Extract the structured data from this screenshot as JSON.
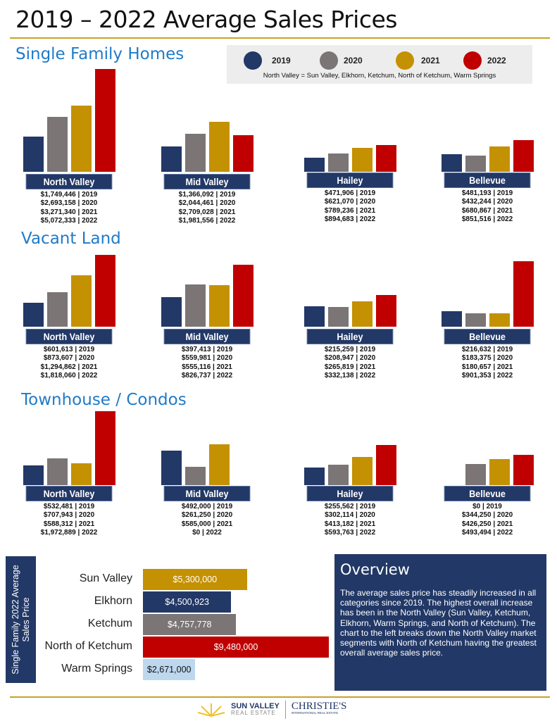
{
  "title": "2019 – 2022 Average Sales Prices",
  "legend": {
    "items": [
      {
        "label": "2019",
        "color": "#223866"
      },
      {
        "label": "2020",
        "color": "#7b7576"
      },
      {
        "label": "2021",
        "color": "#c49102"
      },
      {
        "label": "2022",
        "color": "#c00000"
      }
    ],
    "note": "North Valley = Sun Valley, Elkhorn, Ketchum, North of Ketchum, Warm Springs"
  },
  "chart_data": [
    {
      "type": "bar",
      "title": "Single Family Homes",
      "series_years": [
        "2019",
        "2020",
        "2021",
        "2022"
      ],
      "groups": [
        {
          "name": "North Valley",
          "values": [
            1749446,
            2693158,
            3271340,
            5072333
          ],
          "labels": [
            "$1,749,446 | 2019",
            "$2,693,158 | 2020",
            "$3,271,340 | 2021",
            "$5,072,333 | 2022"
          ]
        },
        {
          "name": "Mid Valley",
          "values": [
            1366092,
            2044461,
            2709028,
            1981556
          ],
          "labels": [
            "$1,366,092 | 2019",
            "$2,044,461 | 2020",
            "$2,709,028 | 2021",
            "$1,981,556 | 2022"
          ]
        },
        {
          "name": "Hailey",
          "values": [
            471906,
            621070,
            789236,
            894683
          ],
          "labels": [
            "$471,906 | 2019",
            "$621,070 | 2020",
            "$789,236 | 2021",
            "$894,683 | 2022"
          ]
        },
        {
          "name": "Bellevue",
          "values": [
            481193,
            432244,
            680867,
            851516
          ],
          "labels": [
            "$481,193 | 2019",
            "$432,244 | 2020",
            "$680,867 | 2021",
            "$851,516 | 2022"
          ]
        }
      ]
    },
    {
      "type": "bar",
      "title": "Vacant Land",
      "series_years": [
        "2019",
        "2020",
        "2021",
        "2022"
      ],
      "groups": [
        {
          "name": "North Valley",
          "values": [
            601613,
            873607,
            1294862,
            1818060
          ],
          "labels": [
            "$601,613 | 2019",
            "$873,607 | 2020",
            "$1,294,862 | 2021",
            "$1,818,060 | 2022"
          ]
        },
        {
          "name": "Mid Valley",
          "values": [
            397413,
            559981,
            555116,
            826737
          ],
          "labels": [
            "$397,413 | 2019",
            "$559,981 | 2020",
            "$555,116 | 2021",
            "$826,737 | 2022"
          ]
        },
        {
          "name": "Hailey",
          "values": [
            215259,
            208947,
            265819,
            332138
          ],
          "labels": [
            "$215,259 | 2019",
            "$208,947 | 2020",
            "$265,819 | 2021",
            "$332,138 | 2022"
          ]
        },
        {
          "name": "Bellevue",
          "values": [
            216632,
            183375,
            180657,
            901353
          ],
          "labels": [
            "$216,632 | 2019",
            "$183,375 | 2020",
            "$180,657 | 2021",
            "$901,353 | 2022"
          ]
        }
      ]
    },
    {
      "type": "bar",
      "title": "Townhouse / Condos",
      "series_years": [
        "2019",
        "2020",
        "2021",
        "2022"
      ],
      "groups": [
        {
          "name": "North Valley",
          "values": [
            532481,
            707943,
            588312,
            1972889
          ],
          "labels": [
            "$532,481 | 2019",
            "$707,943 | 2020",
            "$588,312 | 2021",
            "$1,972,889 | 2022"
          ]
        },
        {
          "name": "Mid Valley",
          "values": [
            492000,
            261250,
            585000,
            0
          ],
          "labels": [
            "$492,000 | 2019",
            "$261,250 | 2020",
            "$585,000 | 2021",
            "$0 | 2022"
          ]
        },
        {
          "name": "Hailey",
          "values": [
            255562,
            302114,
            413182,
            593763
          ],
          "labels": [
            "$255,562 | 2019",
            "$302,114 | 2020",
            "$413,182 | 2021",
            "$593,763 | 2022"
          ]
        },
        {
          "name": "Bellevue",
          "values": [
            0,
            344250,
            426250,
            493494
          ],
          "labels": [
            "$0 | 2019",
            "$344,250 | 2020",
            "$426,250 | 2021",
            "$493,494 | 2022"
          ]
        }
      ]
    },
    {
      "type": "bar",
      "orientation": "horizontal",
      "title": "Single Family 2022 Average Sales Price",
      "categories": [
        "Sun Valley",
        "Elkhorn",
        "Ketchum",
        "North of Ketchum",
        "Warm Springs"
      ],
      "values": [
        5300000,
        4500923,
        4757778,
        9480000,
        2671000
      ],
      "value_labels": [
        "$5,300,000",
        "$4,500,923",
        "$4,757,778",
        "$9,480,000",
        "$2,671,000"
      ],
      "colors": [
        "#c49102",
        "#223866",
        "#7b7576",
        "#c00000",
        "#bdd7ee"
      ],
      "label_colors": [
        "#fff",
        "#fff",
        "#fff",
        "#fff",
        "#111"
      ]
    }
  ],
  "overview": {
    "title": "Overview",
    "body": "The average sales price has steadily increased in all categories since 2019. The highest overall increase has been in the North Valley (Sun Valley, Ketchum, Elkhorn, Warm Springs, and North of Ketchum). The chart to the left breaks down the North Valley market segments with North of Ketchum having the greatest overall average sales price."
  },
  "footer": {
    "logo1_line1": "SUN VALLEY",
    "logo1_line2": "REAL ESTATE",
    "logo2_line1": "CHRISTIE'S",
    "logo2_line2": "INTERNATIONAL REAL ESTATE"
  }
}
